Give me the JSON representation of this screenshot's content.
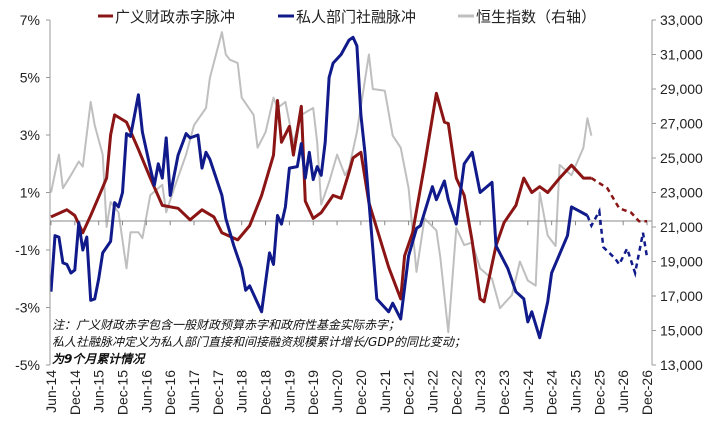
{
  "chart_data": {
    "type": "line",
    "title": "",
    "legend": {
      "placement": "top",
      "entries": [
        "广义财政赤字脉冲",
        "私人部门社融脉冲",
        "恒生指数（右轴）"
      ]
    },
    "notes": [
      "注：广义财政赤字包含一般财政预算赤字和政府性基金实际赤字；",
      "私人社融脉冲定义为私人部门直接和间接融资规模累计增长/GDP的同比变动；",
      "为9个月累计情况"
    ],
    "x_axis": {
      "type": "date",
      "range": [
        "2014-06",
        "2026-12"
      ],
      "tick_labels": [
        "Jun-14",
        "Dec-14",
        "Jun-15",
        "Dec-15",
        "Jun-16",
        "Dec-16",
        "Jun-17",
        "Dec-17",
        "Jun-18",
        "Dec-18",
        "Jun-19",
        "Dec-19",
        "Jun-20",
        "Dec-20",
        "Jun-21",
        "Dec-21",
        "Jun-22",
        "Dec-22",
        "Jun-23",
        "Dec-23",
        "Jun-24",
        "Dec-24",
        "Jun-25",
        "Dec-25",
        "Jun-26",
        "Dec-26"
      ]
    },
    "y_left": {
      "range": [
        -5,
        7
      ],
      "unit": "%",
      "tick_labels": [
        "7%",
        "5%",
        "3%",
        "1%",
        "-1%",
        "-3%",
        "-5%"
      ],
      "tick_values": [
        7,
        5,
        3,
        1,
        -1,
        -3,
        -5
      ]
    },
    "y_right": {
      "range": [
        13000,
        33000
      ],
      "tick_labels": [
        "33,000",
        "31,000",
        "29,000",
        "27,000",
        "25,000",
        "23,000",
        "21,000",
        "19,000",
        "17,000",
        "15,000",
        "13,000"
      ],
      "tick_values": [
        33000,
        31000,
        29000,
        27000,
        25000,
        23000,
        21000,
        19000,
        17000,
        15000,
        13000
      ]
    },
    "grid": false,
    "zero_line": true,
    "series": [
      {
        "name": "广义财政赤字脉冲",
        "axis": "left",
        "color": "#8B1414",
        "points": [
          [
            "2014-06",
            0.15
          ],
          [
            "2014-10",
            0.4
          ],
          [
            "2014-12",
            0.2
          ],
          [
            "2015-02",
            -0.4
          ],
          [
            "2015-04",
            0.2
          ],
          [
            "2015-06",
            0.85
          ],
          [
            "2015-08",
            1.5
          ],
          [
            "2015-09",
            3.0
          ],
          [
            "2015-10",
            3.7
          ],
          [
            "2016-01",
            3.45
          ],
          [
            "2016-04",
            2.5
          ],
          [
            "2016-07",
            1.5
          ],
          [
            "2016-10",
            0.55
          ],
          [
            "2017-02",
            0.45
          ],
          [
            "2017-05",
            0.05
          ],
          [
            "2017-08",
            0.4
          ],
          [
            "2017-11",
            0.15
          ],
          [
            "2018-01",
            -0.4
          ],
          [
            "2018-05",
            -0.65
          ],
          [
            "2018-08",
            -0.15
          ],
          [
            "2018-11",
            0.9
          ],
          [
            "2019-02",
            2.3
          ],
          [
            "2019-03",
            4.2
          ],
          [
            "2019-04",
            2.75
          ],
          [
            "2019-06",
            3.3
          ],
          [
            "2019-07",
            2.3
          ],
          [
            "2019-09",
            4.0
          ],
          [
            "2019-10",
            0.7
          ],
          [
            "2019-12",
            0.1
          ],
          [
            "2020-02",
            0.3
          ],
          [
            "2020-05",
            0.9
          ],
          [
            "2020-07",
            0.8
          ],
          [
            "2020-09",
            1.7
          ],
          [
            "2020-10",
            2.2
          ],
          [
            "2020-12",
            2.4
          ],
          [
            "2021-02",
            0.65
          ],
          [
            "2021-04",
            -0.25
          ],
          [
            "2021-07",
            -1.6
          ],
          [
            "2021-10",
            -2.7
          ],
          [
            "2021-11",
            -1.2
          ],
          [
            "2022-01",
            -0.4
          ],
          [
            "2022-04",
            1.95
          ],
          [
            "2022-07",
            4.45
          ],
          [
            "2022-09",
            3.45
          ],
          [
            "2022-10",
            3.4
          ],
          [
            "2022-12",
            1.5
          ],
          [
            "2023-02",
            0.9
          ],
          [
            "2023-04",
            -0.7
          ],
          [
            "2023-06",
            -2.7
          ],
          [
            "2023-07",
            -2.8
          ],
          [
            "2023-10",
            -0.85
          ],
          [
            "2023-12",
            -0.05
          ],
          [
            "2024-03",
            0.55
          ],
          [
            "2024-05",
            1.5
          ],
          [
            "2024-07",
            1.0
          ],
          [
            "2024-09",
            1.2
          ],
          [
            "2024-11",
            1.0
          ],
          [
            "2025-02",
            1.5
          ],
          [
            "2025-05",
            1.95
          ],
          [
            "2025-08",
            1.5
          ],
          [
            "2025-10",
            1.5
          ]
        ],
        "forecast_dashed": [
          [
            "2025-10",
            1.5
          ],
          [
            "2026-02",
            1.15
          ],
          [
            "2026-05",
            0.45
          ],
          [
            "2026-08",
            0.3
          ],
          [
            "2026-10",
            0.0
          ],
          [
            "2026-12",
            0.0
          ]
        ]
      },
      {
        "name": "私人部门社融脉冲",
        "axis": "left",
        "color": "#101A8A",
        "points": [
          [
            "2014-06",
            -2.45
          ],
          [
            "2014-07",
            -0.5
          ],
          [
            "2014-08",
            -0.55
          ],
          [
            "2014-09",
            -1.45
          ],
          [
            "2014-10",
            -1.5
          ],
          [
            "2014-11",
            -1.8
          ],
          [
            "2014-12",
            -1.7
          ],
          [
            "2015-01",
            -0.05
          ],
          [
            "2015-02",
            -1.0
          ],
          [
            "2015-03",
            -0.55
          ],
          [
            "2015-04",
            -2.75
          ],
          [
            "2015-05",
            -2.7
          ],
          [
            "2015-06",
            -2.0
          ],
          [
            "2015-07",
            -1.1
          ],
          [
            "2015-09",
            -0.7
          ],
          [
            "2015-10",
            0.65
          ],
          [
            "2015-11",
            0.5
          ],
          [
            "2015-12",
            1.0
          ],
          [
            "2016-01",
            3.05
          ],
          [
            "2016-02",
            2.95
          ],
          [
            "2016-04",
            4.4
          ],
          [
            "2016-05",
            3.1
          ],
          [
            "2016-07",
            1.85
          ],
          [
            "2016-08",
            1.25
          ],
          [
            "2016-09",
            2.0
          ],
          [
            "2016-10",
            1.5
          ],
          [
            "2016-11",
            2.9
          ],
          [
            "2016-12",
            0.9
          ],
          [
            "2017-02",
            2.3
          ],
          [
            "2017-04",
            3.05
          ],
          [
            "2017-05",
            2.9
          ],
          [
            "2017-07",
            3.0
          ],
          [
            "2017-08",
            1.85
          ],
          [
            "2017-09",
            2.4
          ],
          [
            "2017-10",
            2.15
          ],
          [
            "2018-01",
            0.9
          ],
          [
            "2018-02",
            0.1
          ],
          [
            "2018-04",
            -0.85
          ],
          [
            "2018-06",
            -1.65
          ],
          [
            "2018-07",
            -2.4
          ],
          [
            "2018-08",
            -2.25
          ],
          [
            "2018-11",
            -3.15
          ],
          [
            "2019-01",
            -1.1
          ],
          [
            "2019-02",
            -1.5
          ],
          [
            "2019-03",
            0.2
          ],
          [
            "2019-04",
            -0.1
          ],
          [
            "2019-05",
            0.5
          ],
          [
            "2019-06",
            1.85
          ],
          [
            "2019-08",
            1.9
          ],
          [
            "2019-09",
            2.7
          ],
          [
            "2019-10",
            1.5
          ],
          [
            "2019-11",
            2.4
          ],
          [
            "2019-12",
            1.45
          ],
          [
            "2020-01",
            1.9
          ],
          [
            "2020-02",
            1.6
          ],
          [
            "2020-03",
            2.75
          ],
          [
            "2020-04",
            5.0
          ],
          [
            "2020-05",
            5.5
          ],
          [
            "2020-07",
            5.8
          ],
          [
            "2020-09",
            6.3
          ],
          [
            "2020-10",
            6.4
          ],
          [
            "2020-11",
            6.1
          ],
          [
            "2020-12",
            3.7
          ],
          [
            "2021-01",
            2.4
          ],
          [
            "2021-03",
            -0.95
          ],
          [
            "2021-04",
            -2.7
          ],
          [
            "2021-07",
            -3.15
          ],
          [
            "2021-08",
            -2.85
          ],
          [
            "2021-10",
            -3.4
          ],
          [
            "2021-12",
            -1.2
          ],
          [
            "2022-02",
            -0.25
          ],
          [
            "2022-03",
            -0.15
          ],
          [
            "2022-06",
            1.2
          ],
          [
            "2022-07",
            0.75
          ],
          [
            "2022-09",
            1.4
          ],
          [
            "2022-10",
            0.75
          ],
          [
            "2022-12",
            -0.1
          ],
          [
            "2023-02",
            2.0
          ],
          [
            "2023-04",
            2.4
          ],
          [
            "2023-06",
            1.0
          ],
          [
            "2023-09",
            1.35
          ],
          [
            "2023-10",
            -0.85
          ],
          [
            "2024-01",
            -1.65
          ],
          [
            "2024-03",
            -2.45
          ],
          [
            "2024-05",
            -2.7
          ],
          [
            "2024-06",
            -3.5
          ],
          [
            "2024-07",
            -3.15
          ],
          [
            "2024-09",
            -4.05
          ],
          [
            "2024-11",
            -2.8
          ],
          [
            "2024-12",
            -1.8
          ],
          [
            "2025-04",
            -0.5
          ],
          [
            "2025-05",
            0.5
          ],
          [
            "2025-07",
            0.35
          ],
          [
            "2025-09",
            0.2
          ]
        ],
        "forecast_dashed": [
          [
            "2025-09",
            0.2
          ],
          [
            "2025-10",
            -0.15
          ],
          [
            "2025-12",
            0.35
          ],
          [
            "2026-01",
            -0.9
          ],
          [
            "2026-04",
            -1.3
          ],
          [
            "2026-05",
            -1.5
          ],
          [
            "2026-07",
            -0.95
          ],
          [
            "2026-09",
            -1.8
          ],
          [
            "2026-11",
            -0.4
          ],
          [
            "2026-12",
            -1.25
          ]
        ]
      },
      {
        "name": "恒生指数（右轴）",
        "axis": "right",
        "color": "#BFBFBF",
        "points": [
          [
            "2014-06",
            23000
          ],
          [
            "2014-08",
            25200
          ],
          [
            "2014-09",
            23250
          ],
          [
            "2014-11",
            24000
          ],
          [
            "2015-01",
            24800
          ],
          [
            "2015-02",
            24500
          ],
          [
            "2015-04",
            28250
          ],
          [
            "2015-05",
            26900
          ],
          [
            "2015-07",
            25200
          ],
          [
            "2015-08",
            21000
          ],
          [
            "2015-09",
            22450
          ],
          [
            "2015-11",
            21850
          ],
          [
            "2016-01",
            18600
          ],
          [
            "2016-02",
            20700
          ],
          [
            "2016-04",
            20700
          ],
          [
            "2016-05",
            20350
          ],
          [
            "2016-07",
            22850
          ],
          [
            "2016-10",
            23450
          ],
          [
            "2016-11",
            21850
          ],
          [
            "2017-01",
            23250
          ],
          [
            "2017-04",
            25200
          ],
          [
            "2017-06",
            26900
          ],
          [
            "2017-09",
            27900
          ],
          [
            "2017-10",
            29650
          ],
          [
            "2018-01",
            32300
          ],
          [
            "2018-02",
            31000
          ],
          [
            "2018-03",
            30700
          ],
          [
            "2018-05",
            30500
          ],
          [
            "2018-06",
            28500
          ],
          [
            "2018-09",
            27500
          ],
          [
            "2018-10",
            25600
          ],
          [
            "2018-12",
            26500
          ],
          [
            "2019-02",
            28500
          ],
          [
            "2019-03",
            27900
          ],
          [
            "2019-05",
            28250
          ],
          [
            "2019-07",
            25900
          ],
          [
            "2019-09",
            27500
          ],
          [
            "2019-12",
            27900
          ],
          [
            "2020-01",
            25900
          ],
          [
            "2020-02",
            22300
          ],
          [
            "2020-04",
            23600
          ],
          [
            "2020-06",
            25200
          ],
          [
            "2020-08",
            24000
          ],
          [
            "2020-09",
            24400
          ],
          [
            "2020-11",
            26500
          ],
          [
            "2021-02",
            31000
          ],
          [
            "2021-03",
            29000
          ],
          [
            "2021-06",
            28900
          ],
          [
            "2021-08",
            26300
          ],
          [
            "2021-10",
            25600
          ],
          [
            "2021-12",
            23250
          ],
          [
            "2022-02",
            18400
          ],
          [
            "2022-04",
            21500
          ],
          [
            "2022-07",
            20800
          ],
          [
            "2022-08",
            19200
          ],
          [
            "2022-10",
            14900
          ],
          [
            "2022-12",
            20950
          ],
          [
            "2023-02",
            19950
          ],
          [
            "2023-04",
            20100
          ],
          [
            "2023-06",
            18600
          ],
          [
            "2023-09",
            18000
          ],
          [
            "2023-11",
            16300
          ],
          [
            "2024-02",
            17050
          ],
          [
            "2024-04",
            19000
          ],
          [
            "2024-06",
            17900
          ],
          [
            "2024-08",
            17600
          ],
          [
            "2024-09",
            23000
          ],
          [
            "2024-11",
            20500
          ],
          [
            "2025-01",
            19900
          ],
          [
            "2025-02",
            24600
          ],
          [
            "2025-05",
            24000
          ],
          [
            "2025-08",
            25600
          ],
          [
            "2025-09",
            27300
          ],
          [
            "2025-10",
            26300
          ]
        ]
      }
    ]
  }
}
